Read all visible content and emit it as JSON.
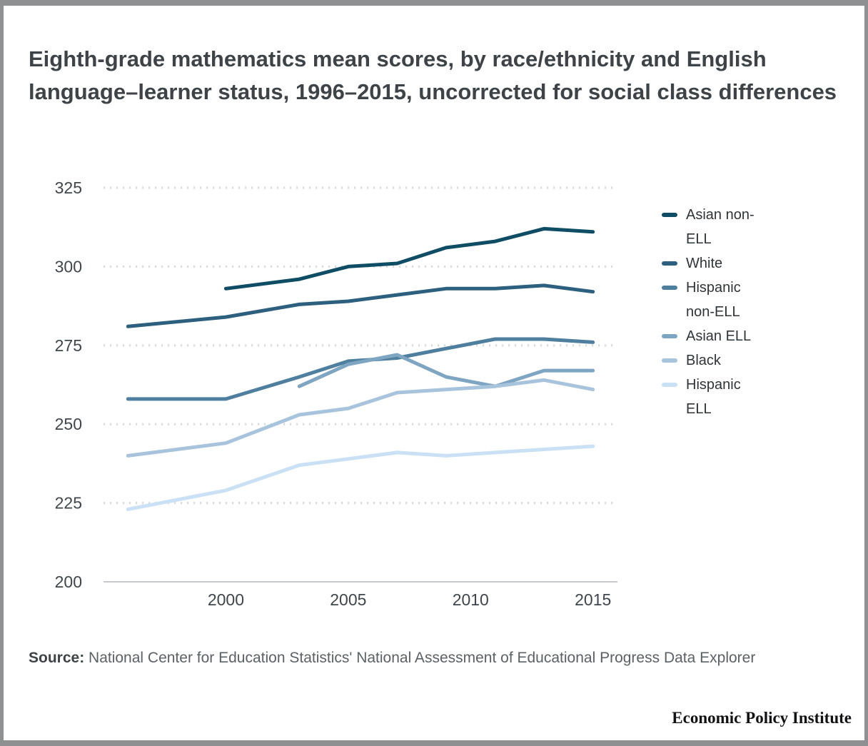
{
  "page": {
    "title": "Eighth-grade mathematics mean scores, by race/ethnicity and English language–learner status, 1996–2015, uncorrected for social class differences",
    "source_label": "Source:",
    "source_text": " National Center for Education Statistics' National Assessment of Educational Progress Data Explorer",
    "brand": "Economic Policy Institute"
  },
  "chart_data": {
    "type": "line",
    "title": "Eighth-grade mathematics mean scores, by race/ethnicity and English language–learner status, 1996–2015, uncorrected for social class differences",
    "xlabel": "",
    "ylabel": "",
    "xlim": [
      1995,
      2016
    ],
    "ylim": [
      200,
      325
    ],
    "xticks": [
      2000,
      2005,
      2010,
      2015
    ],
    "yticks": [
      200,
      225,
      250,
      275,
      300,
      325
    ],
    "grid": "dotted-horizontal",
    "legend_position": "right",
    "series": [
      {
        "name": "Asian non-ELL",
        "color": "#0e4d64",
        "points": [
          [
            2000,
            293
          ],
          [
            2003,
            296
          ],
          [
            2005,
            300
          ],
          [
            2007,
            301
          ],
          [
            2009,
            306
          ],
          [
            2011,
            308
          ],
          [
            2013,
            312
          ],
          [
            2015,
            311
          ]
        ]
      },
      {
        "name": "White",
        "color": "#2d607e",
        "points": [
          [
            1996,
            281
          ],
          [
            2000,
            284
          ],
          [
            2003,
            288
          ],
          [
            2005,
            289
          ],
          [
            2007,
            291
          ],
          [
            2009,
            293
          ],
          [
            2011,
            293
          ],
          [
            2013,
            294
          ],
          [
            2015,
            292
          ]
        ]
      },
      {
        "name": "Hispanic non-ELL",
        "color": "#4e7f9e",
        "points": [
          [
            1996,
            258
          ],
          [
            2000,
            258
          ],
          [
            2003,
            265
          ],
          [
            2005,
            270
          ],
          [
            2007,
            271
          ],
          [
            2009,
            274
          ],
          [
            2011,
            277
          ],
          [
            2013,
            277
          ],
          [
            2015,
            276
          ]
        ]
      },
      {
        "name": "Asian ELL",
        "color": "#7ea5c2",
        "points": [
          [
            2003,
            262
          ],
          [
            2005,
            269
          ],
          [
            2007,
            272
          ],
          [
            2009,
            265
          ],
          [
            2011,
            262
          ],
          [
            2013,
            267
          ],
          [
            2015,
            267
          ]
        ]
      },
      {
        "name": "Black",
        "color": "#a7c4dc",
        "points": [
          [
            1996,
            240
          ],
          [
            2000,
            244
          ],
          [
            2003,
            253
          ],
          [
            2005,
            255
          ],
          [
            2007,
            260
          ],
          [
            2009,
            261
          ],
          [
            2011,
            262
          ],
          [
            2013,
            264
          ],
          [
            2015,
            261
          ]
        ]
      },
      {
        "name": "Hispanic ELL",
        "color": "#c9e0f5",
        "points": [
          [
            1996,
            223
          ],
          [
            2000,
            229
          ],
          [
            2003,
            237
          ],
          [
            2005,
            239
          ],
          [
            2007,
            241
          ],
          [
            2009,
            240
          ],
          [
            2011,
            241
          ],
          [
            2013,
            242
          ],
          [
            2015,
            243
          ]
        ]
      }
    ]
  }
}
